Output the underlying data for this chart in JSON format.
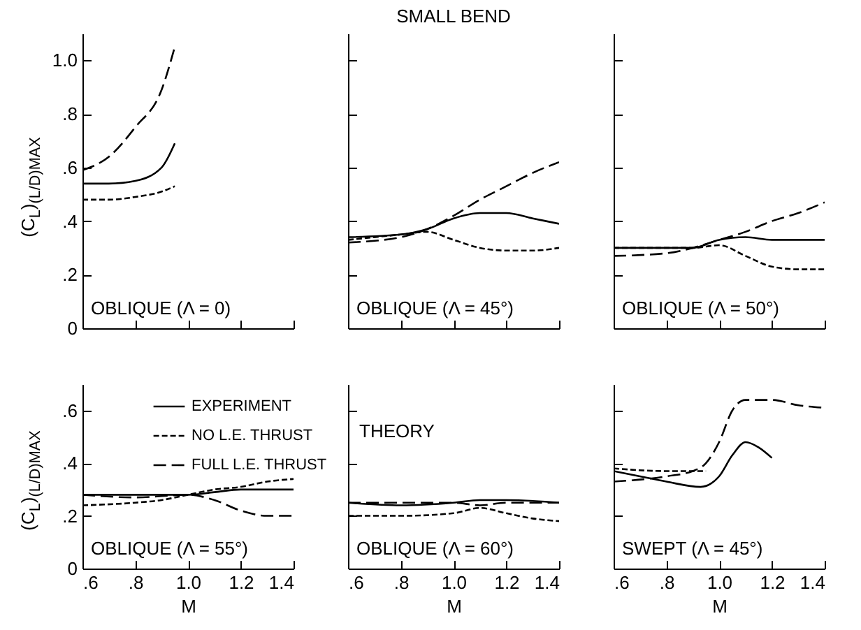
{
  "chart_data": [
    {
      "type": "line",
      "ylabel": "(C$_{L}$)$_{(L/D)MAX}$",
      "annotations": [
        "OBLIQUE (Λ = 0)"
      ],
      "xlim": [
        0.6,
        1.4
      ],
      "xticks": [
        {
          "value": 0.6,
          "label": null
        },
        {
          "value": 0.8,
          "label": null
        },
        {
          "value": 1.0,
          "label": null
        },
        {
          "value": 1.2,
          "label": null
        },
        {
          "value": 1.4,
          "label": null
        }
      ],
      "ylim": [
        0,
        1.1
      ],
      "yticks": [
        0,
        {
          "value": 0.2,
          "label": ".2"
        },
        {
          "value": 0.4,
          "label": ".4"
        },
        {
          "value": 0.6,
          "label": ".6"
        },
        {
          "value": 0.8,
          "label": ".8"
        },
        {
          "value": 1.0,
          "label": "1.0"
        }
      ],
      "tick_labels": "y",
      "series": [
        {
          "color": "#000000",
          "line_style": "solid",
          "x": [
            0.6,
            0.7,
            0.8,
            0.9,
            0.95
          ],
          "values": [
            0.54,
            0.54,
            0.55,
            0.6,
            0.69
          ]
        },
        {
          "color": "#000000",
          "line_style": "dotted",
          "x": [
            0.6,
            0.7,
            0.8,
            0.9,
            0.95
          ],
          "values": [
            0.48,
            0.48,
            0.49,
            0.51,
            0.53
          ]
        },
        {
          "color": "#000000",
          "line_style": "dashed",
          "x": [
            0.6,
            0.7,
            0.8,
            0.9,
            0.95
          ],
          "values": [
            0.59,
            0.64,
            0.75,
            0.89,
            1.05
          ]
        }
      ]
    },
    {
      "type": "line",
      "title": "SMALL BEND",
      "annotations": [
        "OBLIQUE (Λ = 45°)"
      ],
      "xlim": [
        0.6,
        1.4
      ],
      "xticks": [
        {
          "value": 0.6,
          "label": null
        },
        {
          "value": 0.8,
          "label": null
        },
        {
          "value": 1.0,
          "label": null
        },
        {
          "value": 1.2,
          "label": null
        },
        {
          "value": 1.4,
          "label": null
        }
      ],
      "ylim": [
        0,
        1.1
      ],
      "yticks": [
        {
          "value": 0,
          "label": null
        },
        {
          "value": 0.2,
          "label": null
        },
        {
          "value": 0.4,
          "label": null
        },
        {
          "value": 0.6,
          "label": null
        },
        {
          "value": 0.8,
          "label": null
        },
        {
          "value": 1.0,
          "label": null
        }
      ],
      "tick_labels": false,
      "series": [
        {
          "color": "#000000",
          "line_style": "solid",
          "x": [
            0.6,
            0.8,
            0.9,
            1.0,
            1.1,
            1.2,
            1.3,
            1.4
          ],
          "values": [
            0.34,
            0.35,
            0.37,
            0.41,
            0.43,
            0.43,
            0.41,
            0.39
          ]
        },
        {
          "color": "#000000",
          "line_style": "dotted",
          "x": [
            0.6,
            0.8,
            0.9,
            1.0,
            1.1,
            1.2,
            1.3,
            1.4
          ],
          "values": [
            0.33,
            0.35,
            0.36,
            0.33,
            0.3,
            0.29,
            0.29,
            0.3
          ]
        },
        {
          "color": "#000000",
          "line_style": "dashed",
          "x": [
            0.6,
            0.8,
            0.9,
            1.0,
            1.1,
            1.2,
            1.3,
            1.4
          ],
          "values": [
            0.32,
            0.34,
            0.37,
            0.42,
            0.48,
            0.53,
            0.58,
            0.62
          ]
        }
      ]
    },
    {
      "type": "line",
      "annotations": [
        "OBLIQUE (Λ = 50°)"
      ],
      "xlim": [
        0.6,
        1.4
      ],
      "xticks": [
        {
          "value": 0.6,
          "label": null
        },
        {
          "value": 0.8,
          "label": null
        },
        {
          "value": 1.0,
          "label": null
        },
        {
          "value": 1.2,
          "label": null
        },
        {
          "value": 1.4,
          "label": null
        }
      ],
      "ylim": [
        0,
        1.1
      ],
      "yticks": [
        {
          "value": 0,
          "label": null
        },
        {
          "value": 0.2,
          "label": null
        },
        {
          "value": 0.4,
          "label": null
        },
        {
          "value": 0.6,
          "label": null
        },
        {
          "value": 0.8,
          "label": null
        },
        {
          "value": 1.0,
          "label": null
        }
      ],
      "tick_labels": false,
      "series": [
        {
          "color": "#000000",
          "line_style": "solid",
          "x": [
            0.6,
            0.8,
            0.9,
            1.0,
            1.1,
            1.2,
            1.4
          ],
          "values": [
            0.3,
            0.3,
            0.3,
            0.33,
            0.34,
            0.33,
            0.33
          ]
        },
        {
          "color": "#000000",
          "line_style": "dotted",
          "x": [
            0.6,
            0.8,
            0.9,
            1.0,
            1.1,
            1.2,
            1.3,
            1.4
          ],
          "values": [
            0.3,
            0.3,
            0.3,
            0.31,
            0.27,
            0.23,
            0.22,
            0.22
          ]
        },
        {
          "color": "#000000",
          "line_style": "dashed",
          "x": [
            0.6,
            0.8,
            0.9,
            1.0,
            1.1,
            1.2,
            1.3,
            1.4
          ],
          "values": [
            0.27,
            0.28,
            0.3,
            0.33,
            0.36,
            0.4,
            0.43,
            0.47
          ]
        }
      ]
    },
    {
      "type": "line",
      "ylabel": "(C$_{L}$)$_{(L/D)MAX}$",
      "xlabel": "M",
      "legend": "top",
      "annotations": [
        "OBLIQUE (Λ = 55°)",
        "THEORY"
      ],
      "xlim": [
        0.6,
        1.4
      ],
      "xticks": [
        {
          "value": 0.6,
          "label": ".6"
        },
        {
          "value": 0.8,
          "label": ".8"
        },
        {
          "value": 1.0,
          "label": "1.0"
        },
        {
          "value": 1.2,
          "label": "1.2"
        },
        {
          "value": 1.4,
          "label": "1.4"
        }
      ],
      "ylim": [
        0,
        0.7
      ],
      "yticks": [
        0,
        {
          "value": 0.2,
          "label": ".2"
        },
        {
          "value": 0.4,
          "label": ".4"
        },
        {
          "value": 0.6,
          "label": ".6"
        }
      ],
      "series": [
        {
          "name": "EXPERIMENT",
          "color": "#000000",
          "line_style": "solid",
          "x": [
            0.6,
            0.8,
            1.0,
            1.1,
            1.2,
            1.4
          ],
          "values": [
            0.28,
            0.28,
            0.28,
            0.29,
            0.3,
            0.3
          ]
        },
        {
          "name": "NO L.E. THRUST",
          "color": "#000000",
          "line_style": "dotted",
          "x": [
            0.6,
            0.8,
            0.9,
            1.0,
            1.1,
            1.2,
            1.3,
            1.4
          ],
          "values": [
            0.24,
            0.25,
            0.26,
            0.28,
            0.3,
            0.31,
            0.33,
            0.34
          ]
        },
        {
          "name": "FULL L.E. THRUST",
          "color": "#000000",
          "line_style": "dashed",
          "x": [
            0.6,
            0.8,
            1.0,
            1.1,
            1.2,
            1.3,
            1.4
          ],
          "values": [
            0.28,
            0.27,
            0.28,
            0.26,
            0.22,
            0.2,
            0.2
          ]
        }
      ]
    },
    {
      "type": "line",
      "xlabel": "M",
      "annotations": [
        "OBLIQUE (Λ = 60°)"
      ],
      "xlim": [
        0.6,
        1.4
      ],
      "xticks": [
        {
          "value": 0.6,
          "label": ".6"
        },
        {
          "value": 0.8,
          "label": ".8"
        },
        {
          "value": 1.0,
          "label": "1.0"
        },
        {
          "value": 1.2,
          "label": "1.2"
        },
        {
          "value": 1.4,
          "label": "1.4"
        }
      ],
      "ylim": [
        0,
        0.7
      ],
      "yticks": [
        {
          "value": 0,
          "label": null
        },
        {
          "value": 0.2,
          "label": null
        },
        {
          "value": 0.4,
          "label": null
        },
        {
          "value": 0.6,
          "label": null
        }
      ],
      "tick_labels": "x",
      "series": [
        {
          "color": "#000000",
          "line_style": "solid",
          "x": [
            0.6,
            0.8,
            1.0,
            1.1,
            1.2,
            1.4
          ],
          "values": [
            0.25,
            0.24,
            0.25,
            0.26,
            0.26,
            0.25
          ]
        },
        {
          "color": "#000000",
          "line_style": "dotted",
          "x": [
            0.6,
            0.8,
            1.0,
            1.1,
            1.2,
            1.3,
            1.4
          ],
          "values": [
            0.2,
            0.2,
            0.21,
            0.23,
            0.21,
            0.19,
            0.18
          ]
        },
        {
          "color": "#000000",
          "line_style": "dashed",
          "x": [
            0.6,
            0.8,
            1.0,
            1.1,
            1.2,
            1.4
          ],
          "values": [
            0.25,
            0.25,
            0.25,
            0.24,
            0.25,
            0.25
          ]
        }
      ]
    },
    {
      "type": "line",
      "xlabel": "M",
      "annotations": [
        "SWEPT (Λ = 45°)"
      ],
      "xlim": [
        0.6,
        1.4
      ],
      "xticks": [
        {
          "value": 0.6,
          "label": ".6"
        },
        {
          "value": 0.8,
          "label": ".8"
        },
        {
          "value": 1.0,
          "label": "1.0"
        },
        {
          "value": 1.2,
          "label": "1.2"
        },
        {
          "value": 1.4,
          "label": "1.4"
        }
      ],
      "ylim": [
        0,
        0.7
      ],
      "yticks": [
        {
          "value": 0,
          "label": null
        },
        {
          "value": 0.2,
          "label": null
        },
        {
          "value": 0.4,
          "label": null
        },
        {
          "value": 0.6,
          "label": null
        }
      ],
      "tick_labels": "x",
      "series": [
        {
          "color": "#000000",
          "line_style": "solid",
          "x": [
            0.6,
            0.7,
            0.8,
            0.93,
            1.0,
            1.05,
            1.1,
            1.15,
            1.2
          ],
          "values": [
            0.37,
            0.35,
            0.33,
            0.31,
            0.35,
            0.43,
            0.48,
            0.46,
            0.42
          ]
        },
        {
          "color": "#000000",
          "line_style": "dotted",
          "x": [
            0.6,
            0.8,
            0.95
          ],
          "values": [
            0.38,
            0.37,
            0.37
          ]
        },
        {
          "color": "#000000",
          "line_style": "dashed",
          "x": [
            0.6,
            0.8,
            0.9,
            0.95,
            1.0,
            1.05,
            1.1,
            1.2,
            1.3,
            1.4
          ],
          "values": [
            0.33,
            0.35,
            0.37,
            0.4,
            0.48,
            0.6,
            0.64,
            0.64,
            0.62,
            0.61
          ]
        }
      ]
    }
  ]
}
